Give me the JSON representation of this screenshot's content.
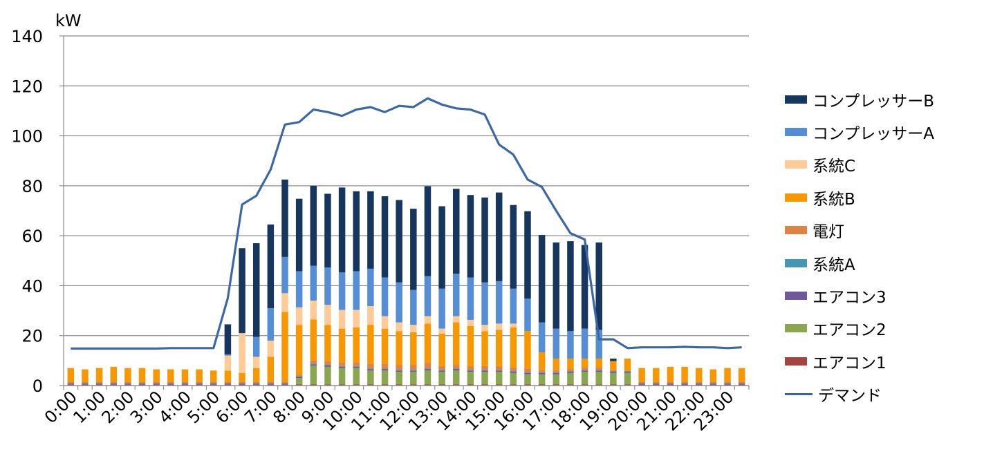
{
  "chart_data": {
    "type": "bar",
    "stacked": true,
    "title": "",
    "ylabel": "kW",
    "xlabel": "",
    "ylim": [
      0,
      140
    ],
    "yticks": [
      "0",
      "20",
      "40",
      "60",
      "80",
      "100",
      "120",
      "140"
    ],
    "grid": true,
    "legend_position": "right",
    "x_tick_labels": [
      "0:00",
      "1:00",
      "2:00",
      "3:00",
      "4:00",
      "5:00",
      "6:00",
      "7:00",
      "8:00",
      "9:00",
      "10:00",
      "11:00",
      "12:00",
      "13:00",
      "14:00",
      "15:00",
      "16:00",
      "17:00",
      "18:00",
      "19:00",
      "20:00",
      "21:00",
      "22:00",
      "23:00"
    ],
    "categories": [
      "0:00",
      "0:30",
      "1:00",
      "1:30",
      "2:00",
      "2:30",
      "3:00",
      "3:30",
      "4:00",
      "4:30",
      "5:00",
      "5:30",
      "6:00",
      "6:30",
      "7:00",
      "7:30",
      "8:00",
      "8:30",
      "9:00",
      "9:30",
      "10:00",
      "10:30",
      "11:00",
      "11:30",
      "12:00",
      "12:30",
      "13:00",
      "13:30",
      "14:00",
      "14:30",
      "15:00",
      "15:30",
      "16:00",
      "16:30",
      "17:00",
      "17:30",
      "18:00",
      "18:30",
      "19:00",
      "19:30",
      "20:00",
      "20:30",
      "21:00",
      "21:30",
      "22:00",
      "22:30",
      "23:00",
      "23:30"
    ],
    "series": [
      {
        "name": "エアコン1",
        "color": "#A5443F",
        "values": [
          0.5,
          0.5,
          0.5,
          0.5,
          0.5,
          0.5,
          0.5,
          0.5,
          0.5,
          0.5,
          0.5,
          0.5,
          0.5,
          0.5,
          0.5,
          0.5,
          0.5,
          0.5,
          0.5,
          0.5,
          0.5,
          0.5,
          0.5,
          0.5,
          0.5,
          0.5,
          0.5,
          0.5,
          0.5,
          0.5,
          0.5,
          0.5,
          0.5,
          0.5,
          0.5,
          0.5,
          0.5,
          0.5,
          0.5,
          0.5,
          0.5,
          0.5,
          0.5,
          0.5,
          0.5,
          0.5,
          0.5,
          0.5
        ]
      },
      {
        "name": "エアコン2",
        "color": "#8AA64E",
        "values": [
          0,
          0,
          0,
          0,
          0,
          0,
          0,
          0,
          0,
          0,
          0,
          0,
          0,
          0,
          0,
          0,
          2.5,
          7.5,
          7,
          6.5,
          6.5,
          5.5,
          5.5,
          5,
          5,
          5.5,
          5,
          5.5,
          5,
          5,
          5,
          4.5,
          4,
          4,
          4,
          4.5,
          5,
          5,
          4.5,
          4.5,
          0,
          0,
          0,
          0,
          0,
          0,
          0,
          0
        ]
      },
      {
        "name": "エアコン3",
        "color": "#70589A",
        "values": [
          0.3,
          0.3,
          0.3,
          0.3,
          0.3,
          0.3,
          0.3,
          0.3,
          0.3,
          0.3,
          0.3,
          0.3,
          0.3,
          0.3,
          0.3,
          0.3,
          0.5,
          0.5,
          0.5,
          0.5,
          0.5,
          0.5,
          0.5,
          0.5,
          0.5,
          0.5,
          0.5,
          0.5,
          0.5,
          0.5,
          0.5,
          0.5,
          0.5,
          0.5,
          0.5,
          0.5,
          0.5,
          0.5,
          0.5,
          0.5,
          0.3,
          0.3,
          0.3,
          0.3,
          0.3,
          0.3,
          0.3,
          0.3
        ]
      },
      {
        "name": "系統A",
        "color": "#4298B5",
        "values": [
          0.2,
          0.2,
          0.2,
          0.2,
          0.2,
          0.2,
          0.2,
          0.2,
          0.2,
          0.2,
          0.2,
          0.2,
          0.2,
          0.2,
          0.2,
          0.2,
          0.3,
          0.3,
          0.3,
          0.3,
          0.3,
          0.3,
          0.3,
          0.3,
          0.3,
          0.3,
          0.3,
          0.3,
          0.3,
          0.3,
          0.3,
          0.3,
          0.3,
          0.3,
          0.3,
          0.3,
          0.3,
          0.3,
          0.3,
          0.3,
          0.2,
          0.2,
          0.2,
          0.2,
          0.2,
          0.2,
          0.2,
          0.2
        ]
      },
      {
        "name": "電灯",
        "color": "#DE8344",
        "values": [
          0.5,
          0.5,
          0.5,
          0.5,
          0.5,
          0.5,
          0.5,
          0.5,
          0.5,
          0.5,
          0.5,
          0.5,
          0.5,
          0.5,
          0.5,
          0.5,
          0.5,
          1.2,
          1.5,
          1.5,
          1.5,
          2,
          2,
          2,
          2,
          2.5,
          1.5,
          1.5,
          1.5,
          1.5,
          1.5,
          1.5,
          1.5,
          1,
          1,
          1,
          1,
          1,
          0.5,
          0,
          0.5,
          0.5,
          0.5,
          0.5,
          0.5,
          0.5,
          0.5,
          0.5
        ]
      },
      {
        "name": "系統B",
        "color": "#F79800",
        "values": [
          5.5,
          5,
          5.5,
          6,
          5.5,
          5.5,
          5,
          5,
          5,
          5,
          4.5,
          4.5,
          3.5,
          5.5,
          10,
          28,
          20,
          16.5,
          14.5,
          13.5,
          14,
          15.5,
          14,
          13.5,
          13,
          15.5,
          13,
          17,
          16,
          14,
          14.5,
          16,
          15,
          7,
          4.5,
          4,
          3.5,
          3.5,
          3.5,
          5,
          5.5,
          5.5,
          6,
          6,
          5.5,
          5,
          5.5,
          5.5
        ]
      },
      {
        "name": "系統C",
        "color": "#FCCB97",
        "values": [
          0,
          0,
          0,
          0,
          0,
          0,
          0,
          0,
          0,
          0,
          0,
          6,
          16,
          4.5,
          6.5,
          7.5,
          7,
          7.5,
          8,
          7.5,
          7,
          7.5,
          5,
          3.5,
          3,
          3,
          2,
          2.5,
          2.5,
          2.5,
          2.5,
          1.5,
          0,
          0,
          0,
          0,
          0,
          0,
          0,
          0,
          0,
          0,
          0,
          0,
          0,
          0,
          0,
          0
        ]
      },
      {
        "name": "コンプレッサーA",
        "color": "#558ED5",
        "values": [
          0,
          0,
          0,
          0,
          0,
          0,
          0,
          0,
          0,
          0,
          0,
          0.5,
          0,
          8,
          13,
          14.5,
          14.5,
          14,
          15,
          15,
          15.5,
          15,
          15.5,
          16,
          14,
          16,
          16,
          17,
          17,
          17,
          17,
          14,
          13,
          12,
          12,
          11,
          12,
          11.5,
          0,
          0,
          0,
          0,
          0,
          0,
          0,
          0,
          0,
          0
        ]
      },
      {
        "name": "コンプレッサーB",
        "color": "#17365D",
        "values": [
          0,
          0,
          0,
          0,
          0,
          0,
          0,
          0,
          0,
          0,
          0,
          12,
          34,
          37.5,
          33.5,
          31,
          29,
          32,
          29.5,
          34,
          32,
          31,
          32.5,
          33,
          32.5,
          36,
          33,
          34,
          33,
          34,
          35.5,
          33.5,
          35,
          35,
          34.5,
          36,
          33.5,
          35,
          1,
          0,
          0,
          0,
          0,
          0,
          0,
          0,
          0,
          0
        ]
      }
    ],
    "line_series": {
      "name": "デマンド",
      "color": "#3C67A6",
      "values": [
        14.8,
        14.8,
        14.8,
        14.8,
        14.8,
        14.8,
        14.8,
        15,
        15,
        15,
        15,
        35,
        72.5,
        76,
        86.5,
        104.5,
        105.5,
        110.5,
        109.5,
        108,
        110.5,
        111.5,
        109.5,
        112,
        111.5,
        115,
        112.5,
        111,
        110.5,
        108.5,
        96.5,
        92.5,
        82.5,
        79.5,
        70,
        61,
        58.5,
        18.5,
        18.5,
        15,
        15.3,
        15.3,
        15.3,
        15.5,
        15.3,
        15.3,
        15,
        15.3
      ]
    }
  }
}
